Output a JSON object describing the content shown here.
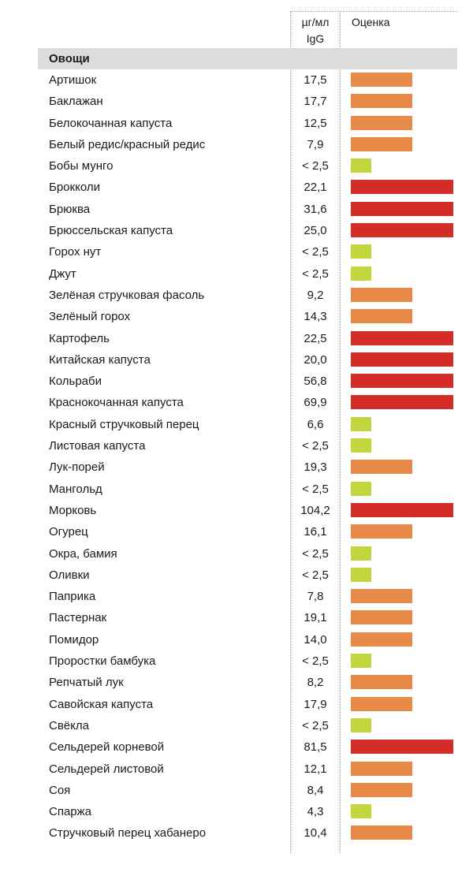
{
  "header": {
    "unit_line1": "µг/мл",
    "unit_line2": "IgG",
    "score": "Оценка"
  },
  "category": "Овощи",
  "levels": {
    "low": {
      "color": "#c3d63e",
      "fraction": 0.2
    },
    "medium": {
      "color": "#e88a48",
      "fraction": 0.6
    },
    "high": {
      "color": "#d42d27",
      "fraction": 1.0
    }
  },
  "rows": [
    {
      "name": "Артишок",
      "value": "17,5",
      "level": "medium"
    },
    {
      "name": "Баклажан",
      "value": "17,7",
      "level": "medium"
    },
    {
      "name": "Белокочанная капуста",
      "value": "12,5",
      "level": "medium"
    },
    {
      "name": "Белый редис/красный редис",
      "value": "7,9",
      "level": "medium"
    },
    {
      "name": "Бобы мунго",
      "value": "< 2,5",
      "level": "low"
    },
    {
      "name": "Брокколи",
      "value": "22,1",
      "level": "high"
    },
    {
      "name": "Брюква",
      "value": "31,6",
      "level": "high"
    },
    {
      "name": "Брюссельская капуста",
      "value": "25,0",
      "level": "high"
    },
    {
      "name": "Горох нут",
      "value": "< 2,5",
      "level": "low"
    },
    {
      "name": "Джут",
      "value": "< 2,5",
      "level": "low"
    },
    {
      "name": "Зелёная стручковая фасоль",
      "value": "9,2",
      "level": "medium"
    },
    {
      "name": "Зелёный горох",
      "value": "14,3",
      "level": "medium"
    },
    {
      "name": "Картофель",
      "value": "22,5",
      "level": "high"
    },
    {
      "name": "Китайская капуста",
      "value": "20,0",
      "level": "high"
    },
    {
      "name": "Кольраби",
      "value": "56,8",
      "level": "high"
    },
    {
      "name": "Краснокочанная капуста",
      "value": "69,9",
      "level": "high"
    },
    {
      "name": "Красный стручковый перец",
      "value": "6,6",
      "level": "low"
    },
    {
      "name": "Листовая капуста",
      "value": "< 2,5",
      "level": "low"
    },
    {
      "name": "Лук-порей",
      "value": "19,3",
      "level": "medium"
    },
    {
      "name": "Мангольд",
      "value": "< 2,5",
      "level": "low"
    },
    {
      "name": "Морковь",
      "value": "104,2",
      "level": "high"
    },
    {
      "name": "Огурец",
      "value": "16,1",
      "level": "medium"
    },
    {
      "name": "Окра, бамия",
      "value": "< 2,5",
      "level": "low"
    },
    {
      "name": "Оливки",
      "value": "< 2,5",
      "level": "low"
    },
    {
      "name": "Паприка",
      "value": "7,8",
      "level": "medium"
    },
    {
      "name": "Пастернак",
      "value": "19,1",
      "level": "medium"
    },
    {
      "name": "Помидор",
      "value": "14,0",
      "level": "medium"
    },
    {
      "name": "Проростки бамбука",
      "value": "< 2,5",
      "level": "low"
    },
    {
      "name": "Репчатый лук",
      "value": "8,2",
      "level": "medium"
    },
    {
      "name": "Савойская капуста",
      "value": "17,9",
      "level": "medium"
    },
    {
      "name": "Свёкла",
      "value": "< 2,5",
      "level": "low"
    },
    {
      "name": "Сельдерей корневой",
      "value": "81,5",
      "level": "high"
    },
    {
      "name": "Сельдерей листовой",
      "value": "12,1",
      "level": "medium"
    },
    {
      "name": "Соя",
      "value": "8,4",
      "level": "medium"
    },
    {
      "name": "Спаржа",
      "value": "4,3",
      "level": "low"
    },
    {
      "name": "Стручковый перец хабанеро",
      "value": "10,4",
      "level": "medium"
    }
  ]
}
